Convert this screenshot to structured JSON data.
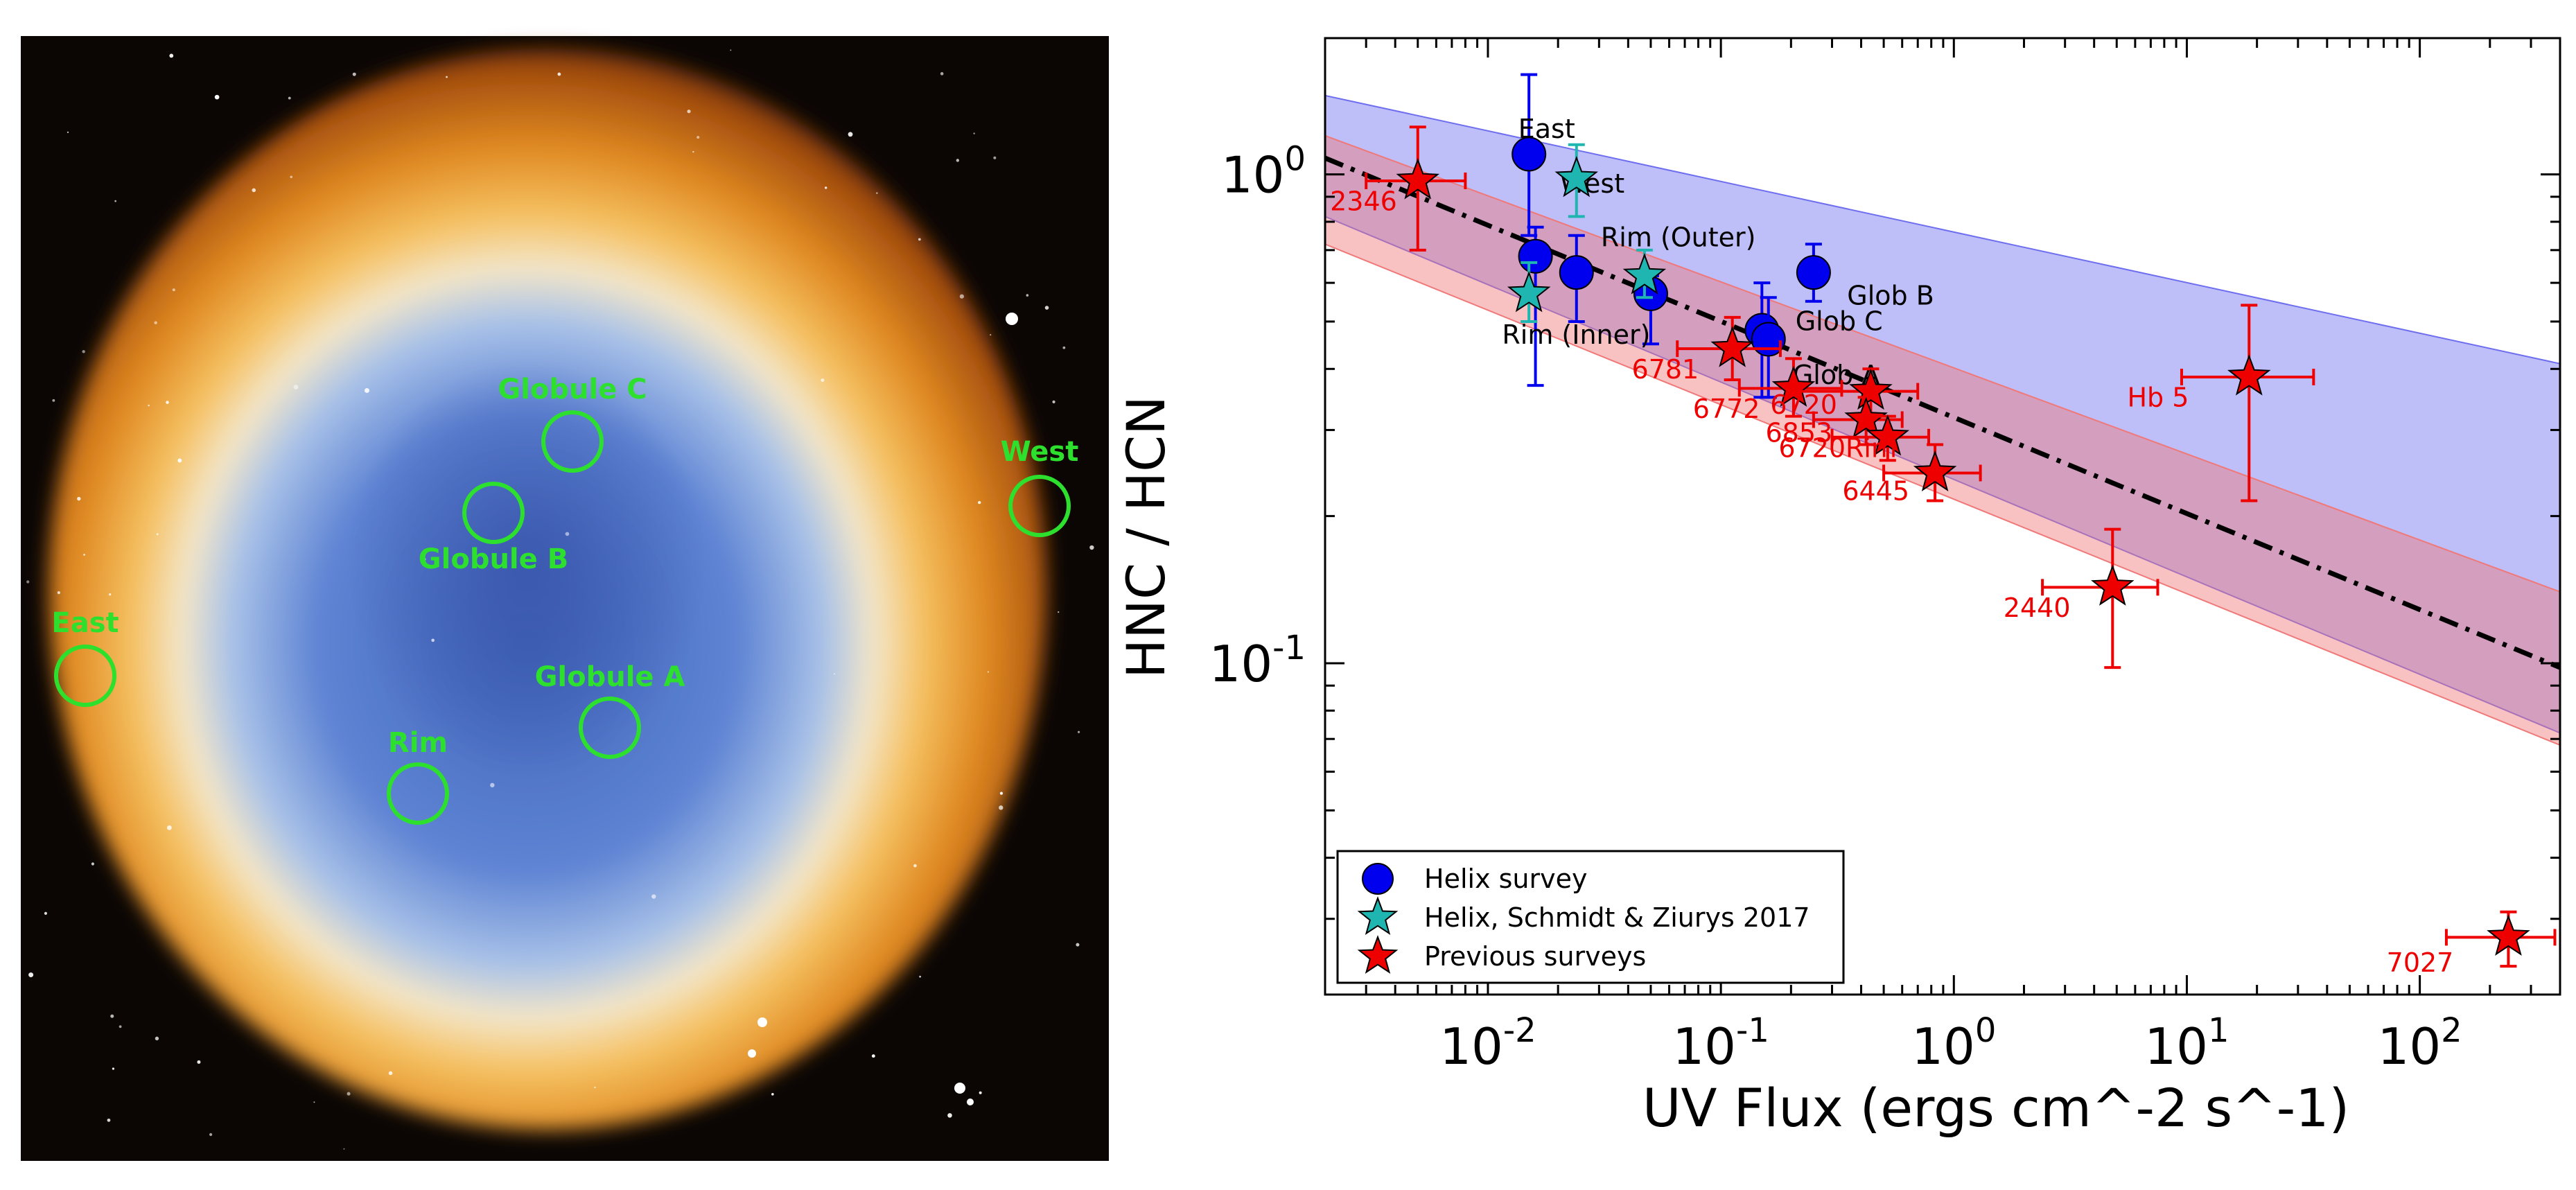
{
  "image": {
    "regions": [
      {
        "label": "Globule C"
      },
      {
        "label": "Globule B"
      },
      {
        "label": "West"
      },
      {
        "label": "East"
      },
      {
        "label": "Globule A"
      },
      {
        "label": "Rim"
      }
    ],
    "colors": {
      "marker": "#2ee02e",
      "space": "#0b0604"
    }
  },
  "chart_data": {
    "type": "scatter",
    "xlabel": "UV Flux (ergs cm^-2 s^-1)",
    "ylabel": "HNC / HCN",
    "xscale": "log",
    "yscale": "log",
    "xlim": [
      0.002,
      400
    ],
    "ylim": [
      0.021,
      1.9
    ],
    "xticks": [
      {
        "value": 0.01,
        "base": "10",
        "exp": "-2"
      },
      {
        "value": 0.1,
        "base": "10",
        "exp": "-1"
      },
      {
        "value": 1,
        "base": "10",
        "exp": "0"
      },
      {
        "value": 10,
        "base": "10",
        "exp": "1"
      },
      {
        "value": 100,
        "base": "10",
        "exp": "2"
      }
    ],
    "yticks": [
      {
        "value": 0.1,
        "base": "10",
        "exp": "-1"
      },
      {
        "value": 1,
        "base": "10",
        "exp": "0"
      }
    ],
    "grid": false,
    "legend_position": "lower-left",
    "legend": [
      {
        "label": "Helix survey",
        "marker": "circle",
        "color": "#0000ee"
      },
      {
        "label": "Helix, Schmidt & Ziurys 2017",
        "marker": "star",
        "color": "#1fb5b0"
      },
      {
        "label": "Previous surveys",
        "marker": "star",
        "color": "#ee0000"
      }
    ],
    "bands": [
      {
        "color": "#6e6ef0",
        "upper": [
          [
            0.002,
            1.45
          ],
          [
            400,
            0.41
          ]
        ],
        "lower": [
          [
            0.002,
            0.82
          ],
          [
            400,
            0.072
          ]
        ]
      },
      {
        "color": "#f07878",
        "upper": [
          [
            0.002,
            1.2
          ],
          [
            400,
            0.14
          ]
        ],
        "lower": [
          [
            0.002,
            0.72
          ],
          [
            400,
            0.068
          ]
        ]
      }
    ],
    "fit_line": {
      "points": [
        [
          0.002,
          1.08
        ],
        [
          400,
          0.098
        ]
      ],
      "style": "dash-dot"
    },
    "series": [
      {
        "name": "Helix survey",
        "marker": "circle",
        "color": "#0000ee",
        "points": [
          {
            "x": 0.015,
            "y": 1.1,
            "yerr": [
              0.75,
              1.6
            ],
            "label": "East",
            "label_dx": 0.9,
            "label_dy": 1.08
          },
          {
            "x": 0.016,
            "y": 0.68,
            "yerr": [
              0.37,
              0.78
            ],
            "label": "West",
            "label_dx": 1.05,
            "label_dy": 1.35
          },
          {
            "x": 0.024,
            "y": 0.63,
            "yerr": [
              0.5,
              0.75
            ],
            "label": "Rim (Outer)",
            "label_dx": 1.05,
            "label_dy": 1.13
          },
          {
            "x": 0.05,
            "y": 0.57,
            "yerr": [
              0.45,
              0.62
            ],
            "label": "Rim (Inner)",
            "label_dx": 0.23,
            "label_dy": 0.79
          },
          {
            "x": 0.15,
            "y": 0.48,
            "yerr": [
              0.35,
              0.6
            ],
            "label": "Glob C",
            "label_dx": 1.15,
            "label_dy": 1.0
          },
          {
            "x": 0.16,
            "y": 0.46,
            "yerr": [
              0.35,
              0.56
            ],
            "label": "Glob A",
            "label_dx": 1.05,
            "label_dy": 0.81
          },
          {
            "x": 0.25,
            "y": 0.63,
            "yerr": [
              0.55,
              0.72
            ],
            "label": "Glob B",
            "label_dx": 1.15,
            "label_dy": 0.86
          }
        ]
      },
      {
        "name": "Helix, Schmidt & Ziurys 2017",
        "marker": "star",
        "color": "#1fb5b0",
        "points": [
          {
            "x": 0.024,
            "y": 0.98,
            "yerr": [
              0.82,
              1.15
            ]
          },
          {
            "x": 0.015,
            "y": 0.57,
            "yerr": [
              0.5,
              0.66
            ]
          },
          {
            "x": 0.047,
            "y": 0.62,
            "yerr": [
              0.56,
              0.7
            ]
          }
        ]
      },
      {
        "name": "Previous surveys",
        "marker": "star",
        "color": "#ee0000",
        "points": [
          {
            "x": 0.005,
            "y": 0.97,
            "xerr": [
              0.003,
              0.008
            ],
            "yerr": [
              0.7,
              1.25
            ],
            "label": "2346",
            "label_dx": 0.42,
            "label_dy": 0.87
          },
          {
            "x": 0.112,
            "y": 0.44,
            "xerr": [
              0.065,
              0.18
            ],
            "yerr": [
              0.38,
              0.51
            ],
            "label": "6781",
            "label_dx": 0.37,
            "label_dy": 0.87
          },
          {
            "x": 0.205,
            "y": 0.365,
            "xerr": [
              0.12,
              0.33
            ],
            "yerr": [
              0.32,
              0.42
            ],
            "label": "6772",
            "label_dx": 0.37,
            "label_dy": 0.87
          },
          {
            "x": 0.44,
            "y": 0.36,
            "xerr": [
              0.22,
              0.7
            ],
            "yerr": [
              0.32,
              0.4
            ],
            "label": "6720",
            "label_dx": 0.37,
            "label_dy": 0.9
          },
          {
            "x": 0.42,
            "y": 0.315,
            "xerr": [
              0.25,
              0.6
            ],
            "yerr": [
              0.28,
              0.35
            ],
            "label": "6853",
            "label_dx": 0.37,
            "label_dy": 0.9
          },
          {
            "x": 0.52,
            "y": 0.29,
            "xerr": [
              0.3,
              0.78
            ],
            "yerr": [
              0.26,
              0.32
            ],
            "label": "6720Rim",
            "label_dx": 0.34,
            "label_dy": 0.91
          },
          {
            "x": 0.83,
            "y": 0.245,
            "xerr": [
              0.5,
              1.3
            ],
            "yerr": [
              0.215,
              0.28
            ],
            "label": "6445",
            "label_dx": 0.4,
            "label_dy": 0.88
          },
          {
            "x": 18.5,
            "y": 0.385,
            "xerr": [
              9.5,
              35
            ],
            "yerr": [
              0.215,
              0.54
            ],
            "label": "Hb 5",
            "label_dx": 0.3,
            "label_dy": 0.87
          },
          {
            "x": 4.8,
            "y": 0.143,
            "xerr": [
              2.4,
              7.5
            ],
            "yerr": [
              0.098,
              0.188
            ],
            "label": "2440",
            "label_dx": 0.34,
            "label_dy": 0.87
          },
          {
            "x": 240,
            "y": 0.0275,
            "xerr": [
              130,
              380
            ],
            "yerr": [
              0.024,
              0.031
            ],
            "label": "7027",
            "label_dx": 0.3,
            "label_dy": 0.85
          }
        ]
      }
    ]
  }
}
